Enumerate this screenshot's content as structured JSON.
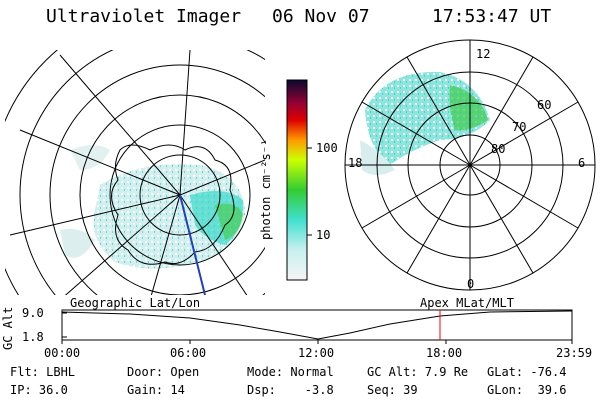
{
  "header": {
    "title": "Ultraviolet Imager",
    "date": "06 Nov 07",
    "time": "17:53:47 UT"
  },
  "colorbar": {
    "label": "photon cm⁻²s⁻¹",
    "ticks": [
      "100",
      "10"
    ]
  },
  "polar_plot": {
    "mlt_labels": [
      "12",
      "18",
      "6",
      "0"
    ],
    "lat_labels": [
      "60",
      "70",
      "80"
    ]
  },
  "timeline": {
    "left_title": "Geographic Lat/Lon",
    "right_title": "Apex MLat/MLT",
    "y_axis_label": "GC Alt",
    "y_ticks": [
      "9.0",
      "1.8"
    ],
    "x_ticks": [
      "00:00",
      "06:00",
      "12:00",
      "18:00",
      "23:59"
    ]
  },
  "info": {
    "row1": [
      "Flt: LBHL",
      "Door: Open",
      "Mode: Normal",
      "GC Alt: 7.9 Re",
      "GLat: -76.4"
    ],
    "row2": [
      "IP: 36.0",
      "Gain: 14",
      "Dsp:    -3.8",
      "Seq: 39",
      "GLon:  39.6"
    ]
  },
  "colors": {
    "low": "#e8f0f0",
    "cyan": "#40e0d0",
    "green": "#33cc33",
    "marker": "#ff0000"
  }
}
